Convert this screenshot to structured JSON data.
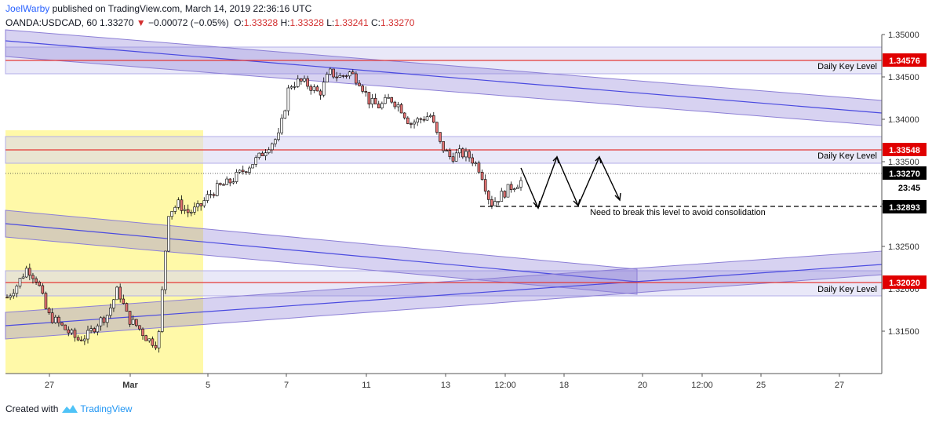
{
  "header": {
    "username": "JoelWarby",
    "publish_text": "published on TradingView.com, March 14, 2019 22:36:16 UTC",
    "symbol": "OANDA:USDCAD, 60",
    "last": "1.33270",
    "change": "−0.00072 (−0.05%)",
    "o_label": "O:",
    "o_value": "1.33328",
    "h_label": "H:",
    "h_value": "1.33328",
    "l_label": "L:",
    "l_value": "1.33241",
    "c_label": "C:",
    "c_value": "1.33270"
  },
  "footer": {
    "created_with": "Created with",
    "brand": "TradingView"
  },
  "colors": {
    "up": "#ffffff",
    "down": "#e57373",
    "candle_border": "#000000",
    "key_level": "#e53935",
    "channel": "#7b68c9",
    "highlight": "#fff9a8",
    "axis_label_red": "#e00000",
    "axis_label_dark": "#000000"
  },
  "chart_data": {
    "type": "candlestick",
    "symbol": "OANDA:USDCAD",
    "timeframe": "60",
    "ylim": [
      1.31,
      1.35
    ],
    "y_ticks": [
      "1.31500",
      "1.32000",
      "1.32500",
      "1.33000",
      "1.33500",
      "1.34000",
      "1.34500",
      "1.35000"
    ],
    "x_ticks": [
      "27",
      "Mar",
      "5",
      "7",
      "11",
      "13",
      "12:00",
      "18",
      "20",
      "12:00",
      "25",
      "27"
    ],
    "price_line": {
      "value": 1.3327,
      "label": "1.33270",
      "countdown": "23:45"
    },
    "key_levels": [
      {
        "value": 1.34576,
        "label": "1.34576",
        "annotation": "Daily Key Level",
        "zone": [
          1.344,
          1.348
        ]
      },
      {
        "value": 1.33548,
        "label": "1.33548",
        "annotation": "Daily Key Level",
        "zone": [
          1.3337,
          1.3377
        ]
      },
      {
        "value": 1.3202,
        "label": "1.32020",
        "annotation": "Daily Key Level",
        "zone": [
          1.3185,
          1.3222
        ]
      }
    ],
    "consolidation_level": {
      "value": 1.32893,
      "label": "1.32893",
      "annotation": "Need to break this level to avoid consolidation"
    },
    "ohlc_close_path": [
      [
        "Feb 26",
        1.319
      ],
      [
        "Feb 26",
        1.3205
      ],
      [
        "Feb 26",
        1.3225
      ],
      [
        "Feb 26",
        1.321
      ],
      [
        "Feb 27",
        1.317
      ],
      [
        "Feb 27",
        1.316
      ],
      [
        "Feb 27",
        1.315
      ],
      [
        "Feb 27",
        1.314
      ],
      [
        "Feb 28",
        1.3145
      ],
      [
        "Feb 28",
        1.316
      ],
      [
        "Feb 28",
        1.317
      ],
      [
        "Feb 28",
        1.32
      ],
      [
        "Mar 1",
        1.3165
      ],
      [
        "Mar 1",
        1.3155
      ],
      [
        "Mar 1",
        1.314
      ],
      [
        "Mar 1",
        1.3135
      ],
      [
        "Mar 4",
        1.329
      ],
      [
        "Mar 4",
        1.33
      ],
      [
        "Mar 4",
        1.329
      ],
      [
        "Mar 4",
        1.3295
      ],
      [
        "Mar 5",
        1.331
      ],
      [
        "Mar 5",
        1.332
      ],
      [
        "Mar 5",
        1.3325
      ],
      [
        "Mar 5",
        1.3335
      ],
      [
        "Mar 6",
        1.3345
      ],
      [
        "Mar 6",
        1.3355
      ],
      [
        "Mar 6",
        1.337
      ],
      [
        "Mar 6",
        1.338
      ],
      [
        "Mar 7",
        1.344
      ],
      [
        "Mar 7",
        1.3445
      ],
      [
        "Mar 7",
        1.344
      ],
      [
        "Mar 7",
        1.343
      ],
      [
        "Mar 8",
        1.3455
      ],
      [
        "Mar 8",
        1.345
      ],
      [
        "Mar 8",
        1.3455
      ],
      [
        "Mar 8",
        1.3445
      ],
      [
        "Mar 11",
        1.342
      ],
      [
        "Mar 11",
        1.3415
      ],
      [
        "Mar 11",
        1.3425
      ],
      [
        "Mar 11",
        1.3415
      ],
      [
        "Mar 12",
        1.3395
      ],
      [
        "Mar 12",
        1.34
      ],
      [
        "Mar 12",
        1.3405
      ],
      [
        "Mar 12",
        1.337
      ],
      [
        "Mar 13",
        1.3355
      ],
      [
        "Mar 13",
        1.336
      ],
      [
        "Mar 13",
        1.3355
      ],
      [
        "Mar 13",
        1.334
      ],
      [
        "Mar 14",
        1.33
      ],
      [
        "Mar 14",
        1.331
      ],
      [
        "Mar 14",
        1.332
      ],
      [
        "Mar 14",
        1.3327
      ]
    ],
    "projection_path": [
      [
        "Mar 14 12:00",
        1.3327
      ],
      [
        "Mar 15",
        1.32893
      ],
      [
        "Mar 18",
        1.3345
      ],
      [
        "Mar 18 12:00",
        1.32893
      ],
      [
        "Mar 19",
        1.3345
      ],
      [
        "Mar 19 12:00",
        1.33
      ]
    ],
    "channels": [
      {
        "name": "upper descending channel",
        "start": [
          "Feb 26",
          1.348
        ],
        "end": [
          "Mar 27",
          1.3398
        ]
      },
      {
        "name": "lower descending channel",
        "start": [
          "Feb 26",
          1.325
        ],
        "end": [
          "Mar 20",
          1.32
        ]
      },
      {
        "name": "ascending channel",
        "start": [
          "Feb 26",
          1.316
        ],
        "end": [
          "Mar 27",
          1.3215
        ]
      }
    ]
  }
}
